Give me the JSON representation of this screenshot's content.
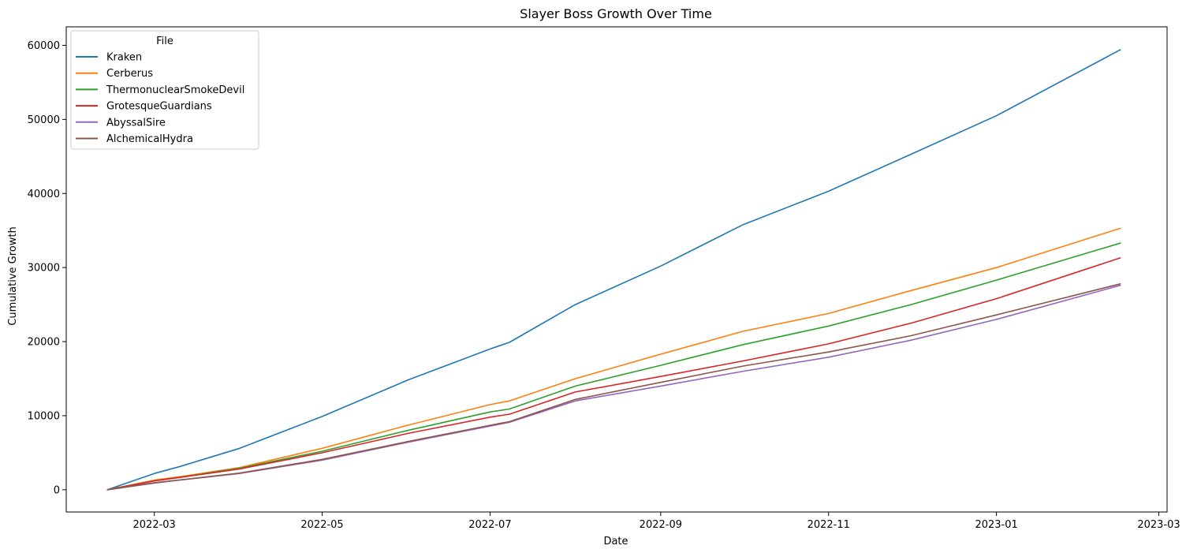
{
  "chart_data": {
    "type": "line",
    "title": "Slayer Boss Growth Over Time",
    "xlabel": "Date",
    "ylabel": "Cumulative Growth",
    "x_range": [
      "2022-01-28",
      "2023-03-04"
    ],
    "ylim": [
      -3000,
      62500
    ],
    "x_ticks": [
      "2022-03-01",
      "2022-05-01",
      "2022-07-01",
      "2022-09-01",
      "2022-11-01",
      "2023-01-01",
      "2023-03-01"
    ],
    "x_tick_labels": [
      "2022-03",
      "2022-05",
      "2022-07",
      "2022-09",
      "2022-11",
      "2023-01",
      "2023-03"
    ],
    "y_ticks": [
      0,
      10000,
      20000,
      30000,
      40000,
      50000,
      60000
    ],
    "y_tick_labels": [
      "0",
      "10000",
      "20000",
      "30000",
      "40000",
      "50000",
      "60000"
    ],
    "grid": false,
    "legend": {
      "title": "File",
      "placement": "upper-left"
    },
    "x": [
      "2022-02-12",
      "2022-03-01",
      "2022-03-10",
      "2022-04-01",
      "2022-05-01",
      "2022-06-01",
      "2022-07-01",
      "2022-07-08",
      "2022-08-01",
      "2022-09-01",
      "2022-10-01",
      "2022-11-01",
      "2022-12-01",
      "2023-01-01",
      "2023-02-15"
    ],
    "series": [
      {
        "name": "Kraken",
        "color": "#1f77b4",
        "values": [
          0,
          2200,
          3100,
          5600,
          9900,
          14800,
          19000,
          19900,
          25000,
          30200,
          35800,
          40300,
          45300,
          50500,
          59400
        ]
      },
      {
        "name": "Cerberus",
        "color": "#ff7f0e",
        "values": [
          0,
          1300,
          1750,
          3000,
          5600,
          8700,
          11500,
          12000,
          15000,
          18300,
          21400,
          23800,
          26900,
          30000,
          35300
        ]
      },
      {
        "name": "ThermonuclearSmokeDevil",
        "color": "#2ca02c",
        "values": [
          0,
          1200,
          1650,
          2900,
          5200,
          8000,
          10500,
          10900,
          14000,
          16800,
          19600,
          22100,
          25000,
          28300,
          33300
        ]
      },
      {
        "name": "GrotesqueGuardians",
        "color": "#d62728",
        "values": [
          0,
          1200,
          1650,
          2800,
          5000,
          7600,
          9800,
          10200,
          13200,
          15300,
          17400,
          19700,
          22500,
          25800,
          31300
        ]
      },
      {
        "name": "AbyssalSire",
        "color": "#9467bd",
        "values": [
          0,
          900,
          1300,
          2200,
          4000,
          6400,
          8600,
          9100,
          12000,
          14000,
          16000,
          17900,
          20200,
          23000,
          27600
        ]
      },
      {
        "name": "AlchemicalHydra",
        "color": "#8c564b",
        "values": [
          0,
          950,
          1300,
          2250,
          4100,
          6500,
          8700,
          9200,
          12200,
          14500,
          16700,
          18600,
          20800,
          23600,
          27800
        ]
      }
    ]
  }
}
